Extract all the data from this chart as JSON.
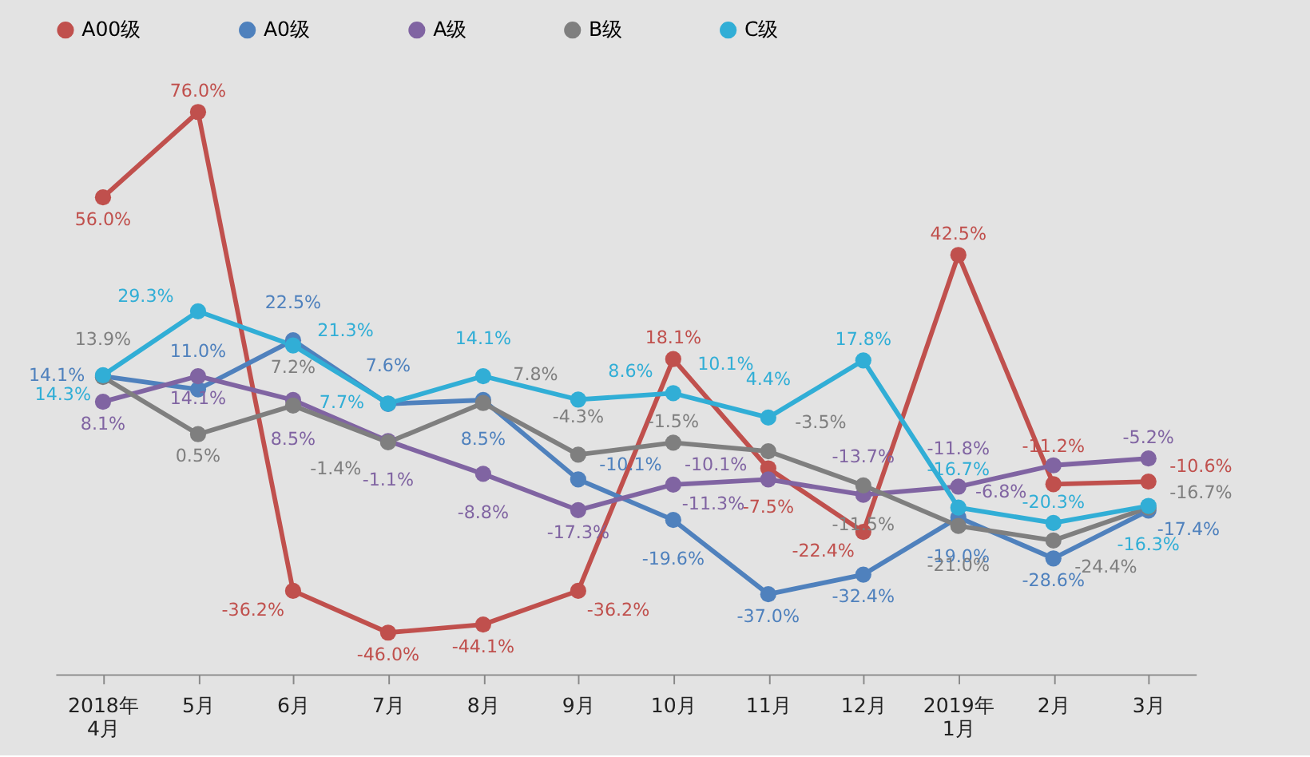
{
  "chart_data": {
    "type": "line",
    "categories": [
      "2018年\n4月",
      "5月",
      "6月",
      "7月",
      "8月",
      "9月",
      "10月",
      "11月",
      "12月",
      "2019年\n1月",
      "2月",
      "3月"
    ],
    "marker": "circle",
    "line_style": "solid",
    "grid": false,
    "legend": "top",
    "tick_labels": "x",
    "series": [
      {
        "name": "A00级",
        "color": "#c0504d",
        "values": [
          56.0,
          76.0,
          -36.2,
          -46.0,
          -44.1,
          -36.2,
          18.1,
          -7.5,
          -22.4,
          42.5,
          -11.2,
          -10.6
        ],
        "value_labels": [
          "56.0%",
          "76.0%",
          "-36.2%",
          "-46.0%",
          "-44.1%",
          "-36.2%",
          "18.1%",
          "-7.5%",
          "-22.4%",
          "42.5%",
          "-11.2%",
          "-10.6%"
        ]
      },
      {
        "name": "A0级",
        "color": "#4f81bd",
        "values": [
          14.1,
          11.0,
          22.5,
          7.6,
          8.5,
          -10.1,
          -19.6,
          -37.0,
          -32.4,
          -19.0,
          -28.6,
          -17.4
        ],
        "value_labels": [
          "14.1%",
          "11.0%",
          "22.5%",
          "7.6%",
          "8.5%",
          "-10.1%",
          "-19.6%",
          "-37.0%",
          "-32.4%",
          "-19.0%",
          "-28.6%",
          "-17.4%"
        ]
      },
      {
        "name": "A级",
        "color": "#8064a2",
        "values": [
          8.1,
          14.1,
          8.5,
          -1.1,
          -8.8,
          -17.3,
          -11.3,
          -10.1,
          -13.7,
          -11.8,
          -6.8,
          -5.2
        ],
        "value_labels": [
          "8.1%",
          "14.1%",
          "8.5%",
          "-1.1%",
          "-8.8%",
          "-17.3%",
          "-11.3%",
          "-10.1%",
          "-13.7%",
          "-11.8%",
          "-6.8%",
          "-5.2%"
        ]
      },
      {
        "name": "B级",
        "color": "#7f7f7f",
        "values": [
          13.9,
          0.5,
          7.2,
          -1.4,
          7.8,
          -4.3,
          -1.5,
          -3.5,
          -11.5,
          -21.0,
          -24.4,
          -16.7
        ],
        "value_labels": [
          "13.9%",
          "0.5%",
          "7.2%",
          "-1.4%",
          "7.8%",
          "-4.3%",
          "-1.5%",
          "-3.5%",
          "-11.5%",
          "-21.0%",
          "-24.4%",
          "-16.7%"
        ]
      },
      {
        "name": "C级",
        "color": "#31aed6",
        "values": [
          14.3,
          29.3,
          21.3,
          7.7,
          14.1,
          8.6,
          10.1,
          4.4,
          17.8,
          -16.7,
          -20.3,
          -16.3
        ],
        "value_labels": [
          "14.3%",
          "29.3%",
          "21.3%",
          "7.7%",
          "14.1%",
          "8.6%",
          "10.1%",
          "4.4%",
          "17.8%",
          "-16.7%",
          "-20.3%",
          "-16.3%"
        ]
      }
    ]
  }
}
